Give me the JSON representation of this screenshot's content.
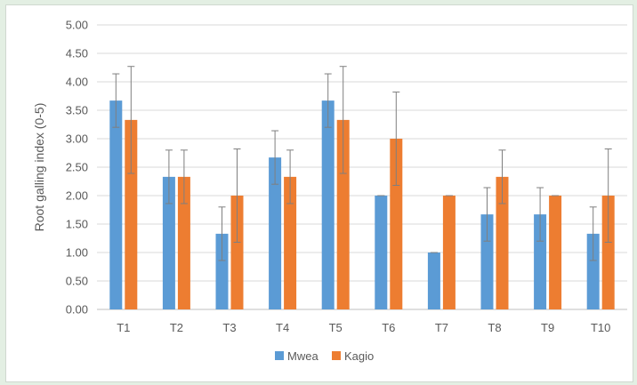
{
  "chart_data": {
    "type": "bar",
    "title": "",
    "xlabel": "",
    "ylabel": "Root galling index (0-5)",
    "ylim": [
      0,
      5
    ],
    "ytick_step": 0.5,
    "yticks": [
      "0.00",
      "0.50",
      "1.00",
      "1.50",
      "2.00",
      "2.50",
      "3.00",
      "3.50",
      "4.00",
      "4.50",
      "5.00"
    ],
    "grid": true,
    "legend_position": "bottom",
    "categories": [
      "T1",
      "T2",
      "T3",
      "T4",
      "T5",
      "T6",
      "T7",
      "T8",
      "T9",
      "T10"
    ],
    "series": [
      {
        "name": "Mwea",
        "color": "#5B9BD5",
        "values": [
          3.67,
          2.33,
          1.33,
          2.67,
          3.67,
          2.0,
          1.0,
          1.67,
          1.67,
          1.33
        ],
        "error": [
          0.47,
          0.47,
          0.47,
          0.47,
          0.47,
          0.0,
          0.0,
          0.47,
          0.47,
          0.47
        ]
      },
      {
        "name": "Kagio",
        "color": "#ED7D31",
        "values": [
          3.33,
          2.33,
          2.0,
          2.33,
          3.33,
          3.0,
          2.0,
          2.33,
          2.0,
          2.0
        ],
        "error": [
          0.94,
          0.47,
          0.82,
          0.47,
          0.94,
          0.82,
          0.0,
          0.47,
          0.0,
          0.82
        ]
      }
    ]
  }
}
